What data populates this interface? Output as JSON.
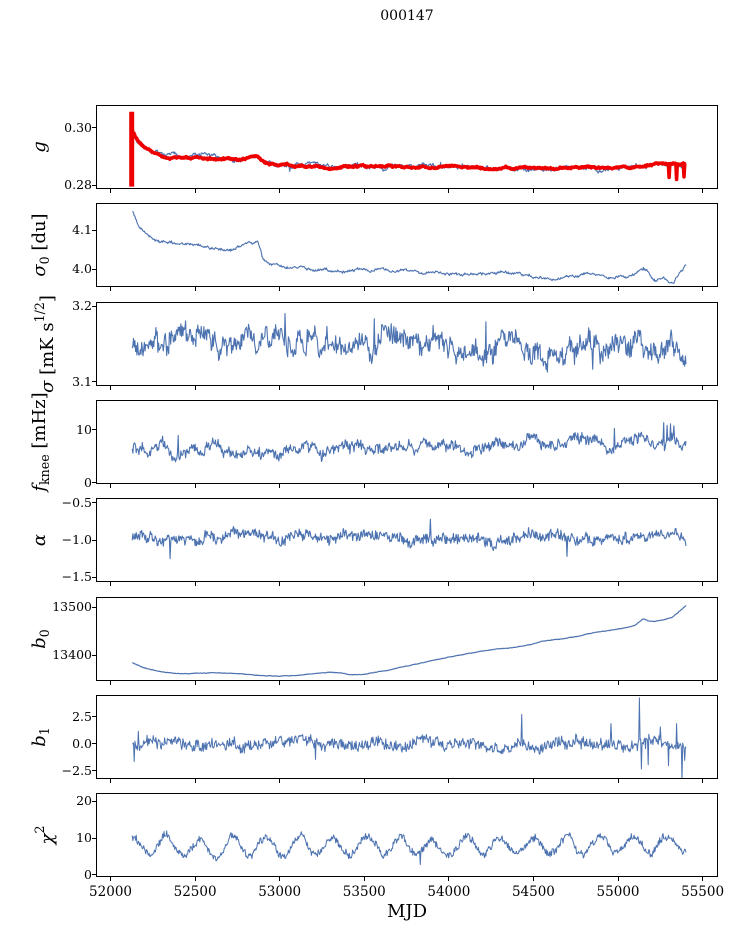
{
  "title": "000147",
  "colors": {
    "line_blue": "#4c72b0",
    "line_red": "#ee0000",
    "axis": "#000000",
    "background": "#ffffff"
  },
  "chart_data": {
    "type": "line",
    "title": "000147",
    "xlabel": "MJD",
    "grid": false,
    "legend": "none",
    "xlim": [
      51920,
      55585
    ],
    "x_data_range": [
      52122,
      55402
    ],
    "x_ticks": [
      52000,
      52500,
      53000,
      53500,
      54000,
      54500,
      55000,
      55500
    ],
    "x_tick_labels": [
      "52000",
      "52500",
      "53000",
      "53500",
      "54000",
      "54500",
      "55000",
      "55500"
    ],
    "panels": [
      {
        "id": "g",
        "ylabel_segments": [
          {
            "t": "g",
            "s": "i"
          }
        ],
        "ylim": [
          0.279,
          0.3075
        ],
        "yticks": [
          {
            "v": 0.3,
            "label": "0.30"
          },
          {
            "v": 0.28,
            "label": "0.28"
          }
        ],
        "series": [
          {
            "name": "gain-raw-blue",
            "color": "#4c72b0",
            "width": 1.1,
            "noise": 0.00045,
            "wander": 0.0002,
            "trend": {
              "x": [
                52128,
                52160,
                52200,
                52260,
                52330,
                52420,
                52520,
                52600,
                52700,
                52760,
                52820,
                52870,
                52895,
                52930,
                53000,
                53100,
                53200,
                53300,
                53400,
                53500,
                53600,
                53700,
                53800,
                53900,
                54000,
                54100,
                54200,
                54300,
                54400,
                54500,
                54600,
                54700,
                54800,
                54900,
                55000,
                55080,
                55150,
                55220,
                55270,
                55320,
                55370,
                55402
              ],
              "y": [
                0.2982,
                0.2952,
                0.2928,
                0.2908,
                0.2897,
                0.2893,
                0.2897,
                0.2894,
                0.2893,
                0.2889,
                0.2895,
                0.2898,
                0.2886,
                0.2872,
                0.2867,
                0.2867,
                0.2866,
                0.2862,
                0.2862,
                0.2864,
                0.2864,
                0.2862,
                0.286,
                0.2862,
                0.2863,
                0.2862,
                0.2859,
                0.2857,
                0.2859,
                0.2861,
                0.2858,
                0.2861,
                0.2862,
                0.2859,
                0.2861,
                0.2862,
                0.2867,
                0.2874,
                0.2878,
                0.2876,
                0.2872,
                0.2876
              ]
            },
            "spikes": [
              [
                53060,
                0.2848
              ],
              [
                53460,
                0.2879
              ],
              [
                53950,
                0.2879
              ],
              [
                54080,
                0.2874
              ],
              [
                54470,
                0.2847
              ],
              [
                54560,
                0.2848
              ]
            ]
          },
          {
            "name": "gain-smoothed-red",
            "color": "#ee0000",
            "width": 3.6,
            "noise": 0.00018,
            "wander": 0.0001,
            "trend": {
              "x": [
                52122,
                52160,
                52200,
                52260,
                52330,
                52420,
                52520,
                52600,
                52700,
                52760,
                52820,
                52870,
                52895,
                52930,
                53000,
                53100,
                53200,
                53300,
                53400,
                53500,
                53600,
                53700,
                53800,
                53900,
                54000,
                54100,
                54200,
                54300,
                54400,
                54500,
                54600,
                54700,
                54800,
                54900,
                55000,
                55080,
                55150,
                55220,
                55270,
                55320,
                55370,
                55402
              ],
              "y": [
                0.2998,
                0.2955,
                0.293,
                0.2909,
                0.2898,
                0.2894,
                0.2898,
                0.2895,
                0.2894,
                0.289,
                0.2896,
                0.2898,
                0.2887,
                0.2873,
                0.2868,
                0.2868,
                0.2867,
                0.2863,
                0.2863,
                0.2865,
                0.2865,
                0.2863,
                0.2861,
                0.2863,
                0.2864,
                0.2863,
                0.286,
                0.2858,
                0.286,
                0.2862,
                0.2859,
                0.2862,
                0.2863,
                0.286,
                0.2862,
                0.2863,
                0.2868,
                0.2875,
                0.2879,
                0.2877,
                0.2873,
                0.2877
              ]
            },
            "spikes": [
              [
                55300,
                0.2827
              ],
              [
                55345,
                0.282
              ],
              [
                55388,
                0.2829
              ]
            ],
            "vspikes": [
              {
                "x": 52125,
                "y0": 0.2795,
                "y1": 0.3055,
                "w": 5
              }
            ]
          }
        ]
      },
      {
        "id": "sigma0-du",
        "ylabel_segments": [
          {
            "t": "σ",
            "s": "i"
          },
          {
            "t": "0",
            "s": "sb"
          },
          {
            "t": " [du]",
            "s": "n"
          }
        ],
        "ylim": [
          3.956,
          4.167
        ],
        "yticks": [
          {
            "v": 4.1,
            "label": "4.1"
          },
          {
            "v": 4.0,
            "label": "4.0"
          }
        ],
        "series": [
          {
            "name": "sigma0-line",
            "color": "#4c72b0",
            "width": 1.1,
            "noise": 0.0022,
            "wander": 0.0012,
            "trend": {
              "x": [
                52128,
                52160,
                52200,
                52260,
                52330,
                52420,
                52520,
                52620,
                52700,
                52760,
                52820,
                52870,
                52900,
                52950,
                53050,
                53150,
                53250,
                53350,
                53450,
                53550,
                53650,
                53750,
                53850,
                53950,
                54050,
                54150,
                54250,
                54350,
                54450,
                54550,
                54650,
                54750,
                54850,
                54950,
                55050,
                55120,
                55170,
                55220,
                55270,
                55320,
                55360,
                55402
              ],
              "y": [
                4.148,
                4.118,
                4.092,
                4.072,
                4.063,
                4.067,
                4.064,
                4.056,
                4.052,
                4.058,
                4.063,
                4.065,
                4.022,
                4.012,
                4.007,
                4.004,
                4.0,
                3.995,
                3.997,
                3.999,
                3.993,
                3.999,
                3.988,
                3.991,
                3.984,
                3.982,
                3.985,
                3.989,
                3.983,
                3.978,
                3.977,
                3.983,
                3.989,
                3.984,
                3.978,
                3.992,
                3.999,
                3.973,
                3.981,
                3.968,
                3.99,
                4.012
              ]
            },
            "spikes": [
              [
                55150,
                4.004
              ],
              [
                55330,
                3.963
              ]
            ]
          }
        ]
      },
      {
        "id": "sigma-mks12",
        "ylabel_segments": [
          {
            "t": "σ",
            "s": "i"
          },
          {
            "t": " [mK s",
            "s": "n"
          },
          {
            "t": "1/2",
            "s": "sp"
          },
          {
            "t": "]",
            "s": "n"
          }
        ],
        "ylim": [
          3.096,
          3.205
        ],
        "yticks": [
          {
            "v": 3.2,
            "label": "3.2"
          },
          {
            "v": 3.1,
            "label": "3.1"
          }
        ],
        "series": [
          {
            "name": "white-noise-line",
            "color": "#4c72b0",
            "width": 1.1,
            "noise": 0.011,
            "wander": 0.004,
            "trend": {
              "x": [
                52128,
                52700,
                53300,
                53900,
                54500,
                55000,
                55402
              ],
              "y": [
                3.154,
                3.157,
                3.155,
                3.152,
                3.15,
                3.148,
                3.143
              ]
            },
            "spikes": [
              [
                53030,
                3.191
              ],
              [
                53560,
                3.184
              ],
              [
                54220,
                3.18
              ],
              [
                54850,
                3.117
              ],
              [
                55390,
                3.128
              ]
            ]
          }
        ]
      },
      {
        "id": "fknee-mhz",
        "ylabel_segments": [
          {
            "t": "f",
            "s": "i"
          },
          {
            "t": "knee",
            "s": "sb"
          },
          {
            "t": " [mHz]",
            "s": "n"
          }
        ],
        "ylim": [
          0,
          15.5
        ],
        "yticks": [
          {
            "v": 10,
            "label": "10"
          },
          {
            "v": 0,
            "label": "0"
          }
        ],
        "series": [
          {
            "name": "fknee-line",
            "color": "#4c72b0",
            "width": 1.1,
            "noise": 0.8,
            "wander": 0.3,
            "trend": {
              "x": [
                52128,
                52600,
                53100,
                53600,
                54100,
                54600,
                55100,
                55402
              ],
              "y": [
                6.3,
                6.3,
                6.6,
                6.9,
                7.3,
                7.7,
                8.2,
                8.6
              ]
            },
            "spikes": [
              [
                52400,
                9.0
              ],
              [
                54980,
                10.3
              ],
              [
                55270,
                11.4
              ],
              [
                55290,
                10.9
              ],
              [
                55310,
                11.2
              ],
              [
                55330,
                10.8
              ]
            ]
          }
        ]
      },
      {
        "id": "alpha",
        "ylabel_segments": [
          {
            "t": "α",
            "s": "i"
          }
        ],
        "ylim": [
          -1.55,
          -0.45
        ],
        "yticks": [
          {
            "v": -0.5,
            "label": "−0.5"
          },
          {
            "v": -1.0,
            "label": "−1.0"
          },
          {
            "v": -1.5,
            "label": "−1.5"
          }
        ],
        "series": [
          {
            "name": "alpha-line",
            "color": "#4c72b0",
            "width": 1.1,
            "noise": 0.06,
            "wander": 0.015,
            "trend": {
              "x": [
                52128,
                55402
              ],
              "y": [
                -0.97,
                -0.96
              ]
            },
            "spikes": [
              [
                52350,
                -1.25
              ],
              [
                53890,
                -0.72
              ],
              [
                54700,
                -1.22
              ]
            ]
          }
        ]
      },
      {
        "id": "b0",
        "ylabel_segments": [
          {
            "t": "b",
            "s": "i"
          },
          {
            "t": "0",
            "s": "sb"
          }
        ],
        "ylim": [
          13349,
          13520
        ],
        "yticks": [
          {
            "v": 13500,
            "label": "13500"
          },
          {
            "v": 13400,
            "label": "13400"
          }
        ],
        "series": [
          {
            "name": "b0-line",
            "color": "#4c72b0",
            "width": 1.2,
            "noise": 0.45,
            "wander": 0.15,
            "trend": {
              "x": [
                52128,
                52200,
                52300,
                52400,
                52500,
                52600,
                52700,
                52800,
                52900,
                53000,
                53100,
                53200,
                53300,
                53360,
                53430,
                53500,
                53600,
                53700,
                53800,
                53900,
                54000,
                54100,
                54200,
                54270,
                54350,
                54450,
                54550,
                54650,
                54750,
                54850,
                54950,
                55050,
                55100,
                55150,
                55180,
                55220,
                55270,
                55320,
                55360,
                55402
              ],
              "y": [
                13385,
                13374,
                13366,
                13363,
                13363,
                13364,
                13363,
                13361,
                13358,
                13357,
                13359,
                13362,
                13366,
                13364,
                13360,
                13361,
                13367,
                13374,
                13382,
                13389,
                13396,
                13403,
                13409,
                13413,
                13415,
                13421,
                13429,
                13434,
                13440,
                13448,
                13452,
                13458,
                13464,
                13477,
                13472,
                13471,
                13475,
                13479,
                13492,
                13504
              ]
            },
            "spikes": []
          }
        ]
      },
      {
        "id": "b1",
        "ylabel_segments": [
          {
            "t": "b",
            "s": "i"
          },
          {
            "t": "1",
            "s": "sb"
          }
        ],
        "ylim": [
          -3.13,
          4.46
        ],
        "yticks": [
          {
            "v": 2.5,
            "label": "2.5"
          },
          {
            "v": 0.0,
            "label": "0.0"
          },
          {
            "v": -2.5,
            "label": "−2.5"
          }
        ],
        "series": [
          {
            "name": "b1-line",
            "color": "#4c72b0",
            "width": 1.0,
            "noise": 0.48,
            "wander": 0.08,
            "trend": {
              "x": [
                52128,
                55402
              ],
              "y": [
                0.15,
                -0.05
              ]
            },
            "spikes": [
              [
                52138,
                -1.6
              ],
              [
                52165,
                1.2
              ],
              [
                53210,
                -1.4
              ],
              [
                54430,
                2.75
              ],
              [
                54960,
                1.9
              ],
              [
                55125,
                4.3
              ],
              [
                55140,
                -2.3
              ],
              [
                55180,
                -1.9
              ],
              [
                55250,
                1.6
              ],
              [
                55300,
                -2.0
              ],
              [
                55345,
                1.9
              ],
              [
                55378,
                -3.6
              ],
              [
                55395,
                -1.5
              ]
            ]
          }
        ]
      },
      {
        "id": "chi2",
        "ylabel_segments": [
          {
            "t": "χ",
            "s": "i"
          },
          {
            "t": "2",
            "s": "sp"
          }
        ],
        "ylim": [
          -0.3,
          21.9
        ],
        "yticks": [
          {
            "v": 20,
            "label": "20"
          },
          {
            "v": 10,
            "label": "10"
          },
          {
            "v": 0,
            "label": "0"
          }
        ],
        "series": [
          {
            "name": "chi2-line",
            "color": "#4c72b0",
            "width": 1.0,
            "noise": 0.85,
            "wander": 0.2,
            "osc": {
              "amp": 2.4,
              "period": 197,
              "peak_x": 52330
            },
            "trend": {
              "x": [
                52128,
                55402
              ],
              "y": [
                7.7,
                8.1
              ]
            },
            "spikes": [
              [
                53830,
                2.8
              ]
            ]
          }
        ]
      }
    ]
  }
}
